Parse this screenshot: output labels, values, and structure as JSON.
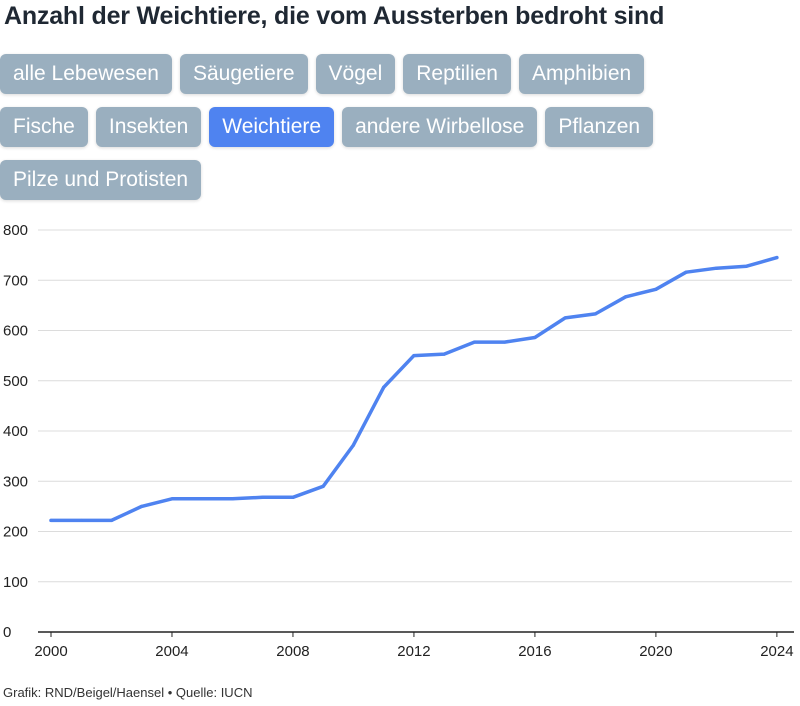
{
  "title": "Anzahl der Weichtiere, die vom Aussterben bedroht sind",
  "filters": {
    "rows": [
      [
        "alle Lebewesen",
        "Säugetiere",
        "Vögel",
        "Reptilien",
        "Amphibien"
      ],
      [
        "Fische",
        "Insekten",
        "Weichtiere",
        "andere Wirbellose",
        "Pflanzen"
      ],
      [
        "Pilze und Protisten"
      ]
    ],
    "active": "Weichtiere"
  },
  "colors": {
    "button": "#9aafbf",
    "button_active": "#4f83f0",
    "line": "#4f83f0",
    "grid": "#dcdcdc",
    "axis": "#222222"
  },
  "chart_data": {
    "type": "line",
    "title": "",
    "xlabel": "",
    "ylabel": "",
    "x": [
      2000,
      2001,
      2002,
      2003,
      2004,
      2005,
      2006,
      2007,
      2008,
      2009,
      2010,
      2011,
      2012,
      2013,
      2014,
      2015,
      2016,
      2017,
      2018,
      2019,
      2020,
      2021,
      2022,
      2023,
      2024
    ],
    "series": [
      {
        "values": [
          222,
          222,
          222,
          250,
          265,
          265,
          265,
          268,
          268,
          290,
          372,
          487,
          550,
          553,
          577,
          577,
          586,
          625,
          633,
          667,
          682,
          716,
          724,
          728,
          745
        ]
      }
    ],
    "xlim": [
      2000,
      2024.5
    ],
    "ylim": [
      0,
      800
    ],
    "xticks": [
      "2000",
      "2004",
      "2008",
      "2012",
      "2016",
      "2020",
      "2024"
    ],
    "yticks": [
      "0",
      "100",
      "200",
      "300",
      "400",
      "500",
      "600",
      "700",
      "800"
    ],
    "grid": true,
    "legend": "none"
  },
  "footer": "Grafik: RND/Beigel/Haensel • Quelle: IUCN"
}
